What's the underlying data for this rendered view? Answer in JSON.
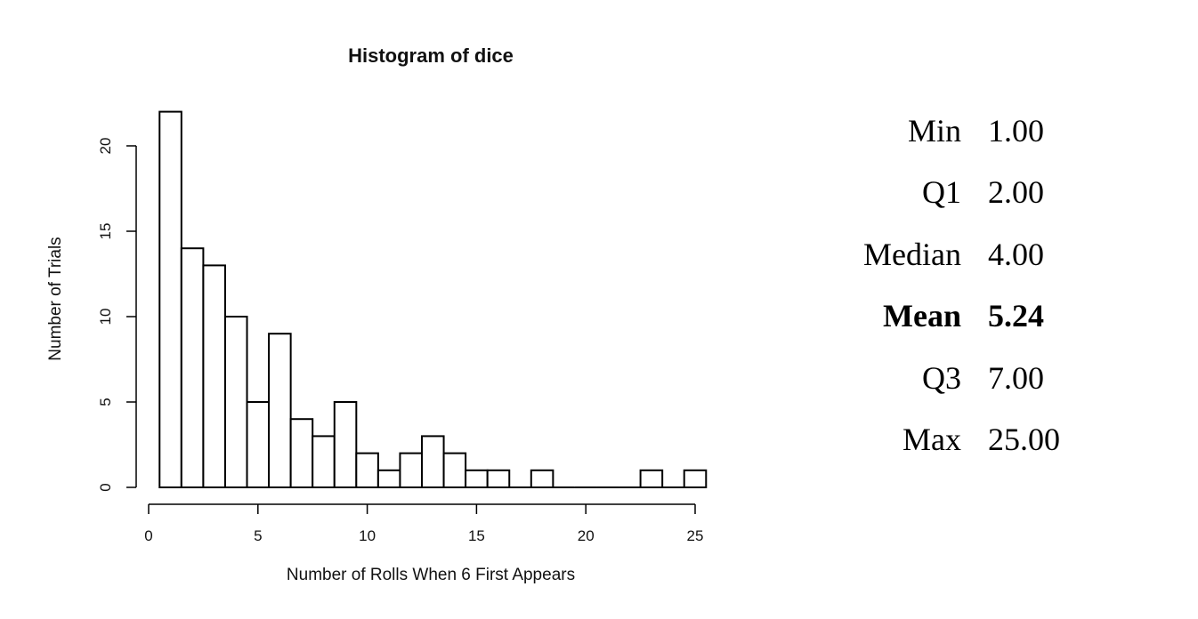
{
  "chart_data": {
    "type": "bar",
    "title": "Histogram of dice",
    "xlabel": "Number of Rolls When 6 First Appears",
    "ylabel": "Number of Trials",
    "bin_width": 1,
    "bins": [
      {
        "x0": 0.5,
        "x1": 1.5,
        "count": 22
      },
      {
        "x0": 1.5,
        "x1": 2.5,
        "count": 14
      },
      {
        "x0": 2.5,
        "x1": 3.5,
        "count": 13
      },
      {
        "x0": 3.5,
        "x1": 4.5,
        "count": 10
      },
      {
        "x0": 4.5,
        "x1": 5.5,
        "count": 5
      },
      {
        "x0": 5.5,
        "x1": 6.5,
        "count": 9
      },
      {
        "x0": 6.5,
        "x1": 7.5,
        "count": 4
      },
      {
        "x0": 7.5,
        "x1": 8.5,
        "count": 3
      },
      {
        "x0": 8.5,
        "x1": 9.5,
        "count": 5
      },
      {
        "x0": 9.5,
        "x1": 10.5,
        "count": 2
      },
      {
        "x0": 10.5,
        "x1": 11.5,
        "count": 1
      },
      {
        "x0": 11.5,
        "x1": 12.5,
        "count": 2
      },
      {
        "x0": 12.5,
        "x1": 13.5,
        "count": 3
      },
      {
        "x0": 13.5,
        "x1": 14.5,
        "count": 2
      },
      {
        "x0": 14.5,
        "x1": 15.5,
        "count": 1
      },
      {
        "x0": 15.5,
        "x1": 16.5,
        "count": 1
      },
      {
        "x0": 16.5,
        "x1": 17.5,
        "count": 0
      },
      {
        "x0": 17.5,
        "x1": 18.5,
        "count": 1
      },
      {
        "x0": 18.5,
        "x1": 19.5,
        "count": 0
      },
      {
        "x0": 19.5,
        "x1": 20.5,
        "count": 0
      },
      {
        "x0": 20.5,
        "x1": 21.5,
        "count": 0
      },
      {
        "x0": 21.5,
        "x1": 22.5,
        "count": 0
      },
      {
        "x0": 22.5,
        "x1": 23.5,
        "count": 1
      },
      {
        "x0": 23.5,
        "x1": 24.5,
        "count": 0
      },
      {
        "x0": 24.5,
        "x1": 25.5,
        "count": 1
      }
    ],
    "xlim": [
      0,
      25.5
    ],
    "ylim": [
      0,
      22
    ],
    "x_ticks": [
      0,
      5,
      10,
      15,
      20,
      25
    ],
    "y_ticks": [
      0,
      5,
      10,
      15,
      20
    ],
    "grid": false,
    "bar_fill": "#ffffff",
    "bar_stroke": "#000000"
  },
  "summary_stats": [
    {
      "label": "Min",
      "value": "1.00",
      "bold": false
    },
    {
      "label": "Q1",
      "value": "2.00",
      "bold": false
    },
    {
      "label": "Median",
      "value": "4.00",
      "bold": false
    },
    {
      "label": "Mean",
      "value": "5.24",
      "bold": true
    },
    {
      "label": "Q3",
      "value": "7.00",
      "bold": false
    },
    {
      "label": "Max",
      "value": "25.00",
      "bold": false
    }
  ]
}
